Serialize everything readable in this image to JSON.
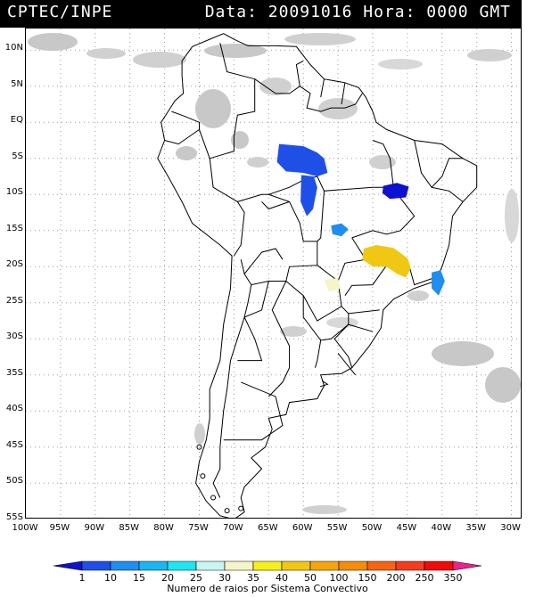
{
  "header": {
    "source": "CPTEC/INPE",
    "datetime": "Data: 20091016 Hora: 0000 GMT"
  },
  "axes": {
    "lat_labels": [
      "10N",
      "5N",
      "EQ",
      "5S",
      "10S",
      "15S",
      "20S",
      "25S",
      "30S",
      "35S",
      "40S",
      "45S",
      "50S",
      "55S"
    ],
    "lon_labels": [
      "100W",
      "95W",
      "90W",
      "85W",
      "80W",
      "75W",
      "70W",
      "65W",
      "60W",
      "55W",
      "50W",
      "45W",
      "40W",
      "35W",
      "30W"
    ]
  },
  "colorbar": {
    "values": [
      "1",
      "10",
      "15",
      "20",
      "25",
      "30",
      "35",
      "40",
      "50",
      "100",
      "150",
      "200",
      "250",
      "350"
    ],
    "colors": [
      "#1010d0",
      "#1e50e8",
      "#1e8ef0",
      "#19b6f0",
      "#1ee6f0",
      "#c8f5f0",
      "#f5f5c8",
      "#f5f019",
      "#f0c814",
      "#f5a50a",
      "#f58c0a",
      "#f56414",
      "#f53c1e",
      "#f00a0a",
      "#f0208c"
    ],
    "caption": "Numero de raios por Sistema Convectivo"
  },
  "colors": {
    "cloud_gray": "#c8c8c8",
    "grid": "#9a9a9a",
    "border": "#000000"
  },
  "convective_systems": [
    {
      "id": "amazon-central",
      "color": "#1e50e8",
      "lat": -5.5,
      "lon": -60
    },
    {
      "id": "amazon-south",
      "color": "#1e50e8",
      "lat": -10,
      "lon": -58.5
    },
    {
      "id": "bahia",
      "color": "#1010d0",
      "lat": -9.5,
      "lon": -46
    },
    {
      "id": "mato-grosso",
      "color": "#1e8ef0",
      "lat": -15,
      "lon": -54.5
    },
    {
      "id": "goias-minas",
      "color": "#f0c814",
      "lat": -19.5,
      "lon": -48
    },
    {
      "id": "rio",
      "color": "#1e8ef0",
      "lat": -22,
      "lon": -40.5
    },
    {
      "id": "parana",
      "color": "#f5f5c8",
      "lat": -22.5,
      "lon": -56
    }
  ]
}
